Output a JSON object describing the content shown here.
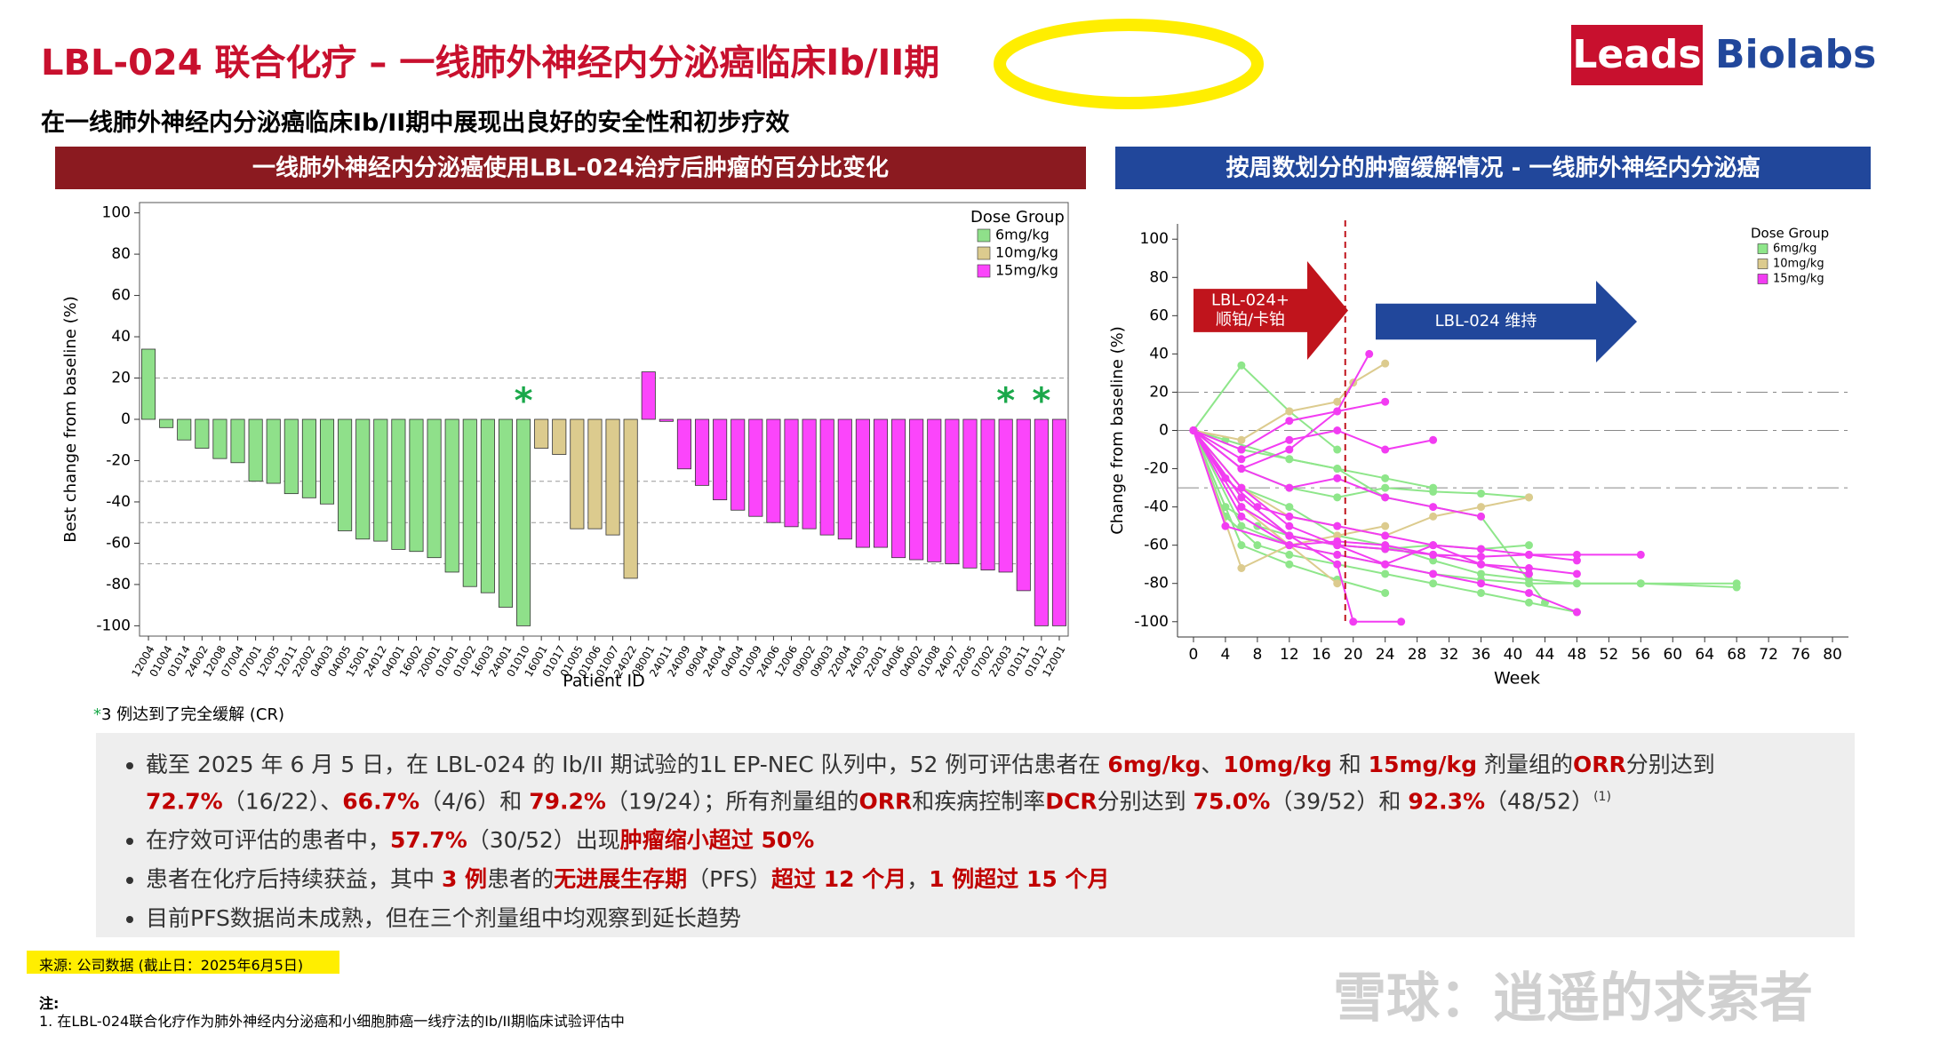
{
  "header": {
    "title": "LBL-024 联合化疗 – 一线肺外神经内分泌癌临床Ib/II期",
    "subtitle": "在一线肺外神经内分泌癌临床Ib/II期中展现出良好的安全性和初步疗效",
    "logo_left": "Leads",
    "logo_right": "Biolabs"
  },
  "chart_data": [
    {
      "type": "bar",
      "title": "一线肺外神经内分泌癌使用LBL-024治疗后肿瘤的百分比变化",
      "xlabel": "Patient ID",
      "ylabel": "Best change from baseline (%)",
      "legend_title": "Dose Group",
      "legend": "top-right",
      "ylim": [
        -105,
        105
      ],
      "yticks": [
        -100,
        -80,
        -60,
        -40,
        -20,
        0,
        20,
        40,
        60,
        80,
        100
      ],
      "reference_lines": [
        20,
        -30,
        -50,
        -70
      ],
      "series": [
        {
          "name": "6mg/kg",
          "color": "#8fe08a",
          "categories": [
            "12004",
            "01004",
            "01014",
            "24002",
            "12008",
            "07004",
            "07001",
            "12005",
            "12011",
            "22002",
            "04003",
            "04005",
            "15001",
            "24012",
            "04001",
            "16002",
            "20001",
            "01001",
            "01002",
            "16003",
            "24001",
            "01010"
          ],
          "values": [
            34,
            -4,
            -10,
            -14,
            -19,
            -21,
            -30,
            -31,
            -36,
            -38,
            -41,
            -54,
            -58,
            -59,
            -63,
            -64,
            -67,
            -74,
            -81,
            -84,
            -91,
            -100
          ]
        },
        {
          "name": "10mg/kg",
          "color": "#dccb8e",
          "categories": [
            "16001",
            "01017",
            "01005",
            "01006",
            "01007",
            "24022"
          ],
          "values": [
            -14,
            -17,
            -53,
            -53,
            -56,
            -77
          ]
        },
        {
          "name": "15mg/kg",
          "color": "#fb45fb",
          "categories": [
            "08001",
            "24011",
            "24009",
            "09004",
            "24004",
            "04004",
            "01009",
            "24006",
            "12006",
            "09002",
            "09003",
            "22004",
            "24003",
            "22001",
            "04006",
            "04002",
            "01008",
            "24007",
            "22005",
            "07002",
            "22003",
            "01011",
            "01012",
            "12001"
          ],
          "values": [
            23,
            -1,
            -24,
            -32,
            -39,
            -44,
            -47,
            -50,
            -52,
            -53,
            -56,
            -58,
            -62,
            -62,
            -67,
            -68,
            -69,
            -70,
            -72,
            -73,
            -74,
            -83,
            -100,
            -100
          ]
        }
      ],
      "annotations": [
        {
          "text": "*",
          "category": "01010"
        },
        {
          "text": "*",
          "category": "22003"
        },
        {
          "text": "*",
          "category": "01012"
        }
      ],
      "footnote": "3 例达到了完全缓解 (CR)",
      "footnote_mark": "*"
    },
    {
      "type": "spider",
      "title": "按周数划分的肿瘤缓解情况 - 一线肺外神经内分泌癌",
      "xlabel": "Week",
      "ylabel": "Change from baseline (%)",
      "legend_title": "Dose Group",
      "legend": "top-right",
      "xlim": [
        -2,
        82
      ],
      "xticks": [
        0,
        4,
        8,
        12,
        16,
        20,
        24,
        28,
        32,
        36,
        40,
        44,
        48,
        52,
        56,
        60,
        64,
        68,
        72,
        76,
        80
      ],
      "ylim": [
        -108,
        108
      ],
      "yticks": [
        -100,
        -80,
        -60,
        -40,
        -20,
        0,
        20,
        40,
        60,
        80,
        100
      ],
      "reference_lines": [
        20,
        0,
        -30
      ],
      "vline": 19,
      "phases": [
        {
          "text": [
            "LBL-024+",
            "顺铂/卡铂"
          ],
          "color": "#c0141c"
        },
        {
          "text": [
            "LBL-024 维持"
          ],
          "color": "#21479b"
        }
      ],
      "series": [
        {
          "name": "6mg/kg",
          "color": "#8ee68a",
          "lines": [
            {
              "x": [
                0,
                6,
                12,
                18,
                24,
                30,
                36,
                42
              ],
              "values": [
                0,
                -35,
                -55,
                -60,
                -62,
                -65,
                -70,
                -75
              ]
            },
            {
              "x": [
                0,
                4,
                8,
                12,
                18,
                24,
                30,
                36,
                42,
                48
              ],
              "values": [
                0,
                -45,
                -60,
                -65,
                -70,
                -75,
                -80,
                -85,
                -90,
                -95
              ]
            },
            {
              "x": [
                0,
                6,
                12,
                18
              ],
              "values": [
                0,
                34,
                10,
                -10
              ]
            },
            {
              "x": [
                0,
                6,
                12,
                18,
                24,
                30,
                36,
                42,
                48,
                56,
                68
              ],
              "values": [
                0,
                -30,
                -40,
                -55,
                -60,
                -68,
                -75,
                -78,
                -80,
                -80,
                -82
              ]
            },
            {
              "x": [
                0,
                6,
                12,
                18,
                24,
                30,
                36,
                42
              ],
              "values": [
                0,
                -20,
                -30,
                -35,
                -30,
                -32,
                -33,
                -35
              ]
            },
            {
              "x": [
                0,
                4,
                8,
                12,
                18,
                24,
                30,
                36,
                42
              ],
              "values": [
                0,
                -40,
                -50,
                -55,
                -60,
                -62,
                -60,
                -62,
                -60
              ]
            },
            {
              "x": [
                0,
                6,
                12,
                18,
                24,
                30
              ],
              "values": [
                0,
                -10,
                -15,
                -20,
                -25,
                -30
              ]
            },
            {
              "x": [
                0,
                6,
                12,
                18,
                24,
                30,
                36,
                42,
                48,
                56,
                68
              ],
              "values": [
                0,
                -50,
                -60,
                -65,
                -70,
                -75,
                -78,
                -80,
                -80,
                -80,
                -80
              ]
            },
            {
              "x": [
                0,
                6,
                12,
                18,
                24
              ],
              "values": [
                0,
                -60,
                -70,
                -78,
                -85
              ]
            },
            {
              "x": [
                0,
                4,
                12,
                18,
                24,
                36,
                44
              ],
              "values": [
                0,
                -5,
                -15,
                -20,
                -35,
                -45,
                -90
              ]
            }
          ]
        },
        {
          "name": "10mg/kg",
          "color": "#dccb8e",
          "lines": [
            {
              "x": [
                0,
                6,
                12,
                18,
                24
              ],
              "values": [
                0,
                -72,
                -60,
                -55,
                -50
              ]
            },
            {
              "x": [
                0,
                6,
                12,
                18,
                24,
                30,
                36,
                42
              ],
              "values": [
                0,
                -30,
                -45,
                -50,
                -55,
                -45,
                -40,
                -35
              ]
            },
            {
              "x": [
                0,
                6,
                12,
                18,
                20,
                24
              ],
              "values": [
                0,
                -5,
                10,
                15,
                25,
                35
              ]
            },
            {
              "x": [
                0,
                6,
                12,
                18
              ],
              "values": [
                0,
                -40,
                -60,
                -80
              ]
            }
          ]
        },
        {
          "name": "15mg/kg",
          "color": "#f23cf2",
          "lines": [
            {
              "x": [
                0,
                6,
                12,
                18,
                22
              ],
              "values": [
                0,
                -20,
                -10,
                10,
                40
              ]
            },
            {
              "x": [
                0,
                6,
                12,
                18,
                24,
                30,
                36,
                42,
                48,
                56
              ],
              "values": [
                0,
                -30,
                -50,
                -60,
                -62,
                -65,
                -66,
                -65,
                -65,
                -65
              ]
            },
            {
              "x": [
                0,
                6,
                12,
                18,
                24,
                30,
                36,
                42,
                48
              ],
              "values": [
                0,
                -40,
                -55,
                -60,
                -70,
                -75,
                -80,
                -85,
                -95
              ]
            },
            {
              "x": [
                0,
                6,
                12,
                18,
                20,
                26
              ],
              "values": [
                0,
                -35,
                -55,
                -70,
                -100,
                -100
              ]
            },
            {
              "x": [
                0,
                4,
                8,
                12,
                18,
                24,
                30,
                36,
                42,
                48
              ],
              "values": [
                0,
                -25,
                -40,
                -45,
                -50,
                -55,
                -60,
                -62,
                -65,
                -68
              ]
            },
            {
              "x": [
                0,
                6,
                12,
                18,
                24
              ],
              "values": [
                0,
                -10,
                5,
                10,
                15
              ]
            },
            {
              "x": [
                0,
                6,
                12,
                18,
                24,
                30,
                36
              ],
              "values": [
                0,
                -20,
                -30,
                -25,
                -35,
                -40,
                -45
              ]
            },
            {
              "x": [
                0,
                6,
                12,
                18,
                24,
                30,
                36,
                42
              ],
              "values": [
                0,
                -45,
                -60,
                -65,
                -70,
                -60,
                -70,
                -75
              ]
            },
            {
              "x": [
                0,
                6,
                12,
                18,
                24,
                30
              ],
              "values": [
                0,
                -15,
                -5,
                0,
                -10,
                -5
              ]
            },
            {
              "x": [
                0,
                4,
                12,
                18,
                24,
                30,
                36,
                42,
                48
              ],
              "values": [
                0,
                -50,
                -60,
                -58,
                -60,
                -65,
                -70,
                -72,
                -75
              ]
            }
          ]
        }
      ]
    }
  ],
  "bullets": [
    [
      {
        "text": "截至 2025 年 6 月 5 日，在 LBL-024 的 Ib/II 期试验的1L  EP-NEC 队列中，52 例可评估患者在 "
      },
      {
        "text": "6mg/kg",
        "emphasis": true
      },
      {
        "text": "、"
      },
      {
        "text": "10mg/kg",
        "emphasis": true
      },
      {
        "text": " 和 "
      },
      {
        "text": "15mg/kg",
        "emphasis": true
      },
      {
        "text": " 剂量组的"
      },
      {
        "text": "ORR",
        "emphasis": true
      },
      {
        "text": "分别达到 "
      },
      {
        "text": "72.7%",
        "emphasis": true
      },
      {
        "text": "（16/22）、"
      },
      {
        "text": "66.7%",
        "emphasis": true
      },
      {
        "text": "（4/6）和 "
      },
      {
        "text": "79.2%",
        "emphasis": true
      },
      {
        "text": "（19/24）；所有剂量组的"
      },
      {
        "text": "ORR",
        "emphasis": true
      },
      {
        "text": "和疾病控制率"
      },
      {
        "text": "DCR",
        "emphasis": true
      },
      {
        "text": "分别达到 "
      },
      {
        "text": "75.0%",
        "emphasis": true
      },
      {
        "text": "（39/52）和 "
      },
      {
        "text": "92.3%",
        "emphasis": true
      },
      {
        "text": "（48/52）"
      },
      {
        "text": "(1)",
        "superscript": true
      }
    ],
    [
      {
        "text": "在疗效可评估的患者中，"
      },
      {
        "text": "57.7%",
        "emphasis": true
      },
      {
        "text": "（30/52）出现"
      },
      {
        "text": "肿瘤缩小超过 50%",
        "emphasis": true
      }
    ],
    [
      {
        "text": "患者在化疗后持续获益，其中 "
      },
      {
        "text": "3 例",
        "emphasis": true
      },
      {
        "text": "患者的"
      },
      {
        "text": "无进展生存期",
        "emphasis": true
      },
      {
        "text": "（PFS）"
      },
      {
        "text": "超过 12 个月",
        "emphasis": true
      },
      {
        "text": "，"
      },
      {
        "text": "1 例超过 15 个月",
        "emphasis": true
      }
    ],
    [
      {
        "text": "目前PFS数据尚未成熟，但在三个剂量组中均观察到延长趋势"
      }
    ]
  ],
  "source": "来源: 公司数据 (截止日：2025年6月5日)",
  "notes": {
    "heading": "注:",
    "items": [
      "1. 在LBL-024联合化疗作为肺外神经内分泌癌和小细胞肺癌一线疗法的Ib/II期临床试验评估中"
    ]
  },
  "watermark": "雪球：逍遥的求索者"
}
